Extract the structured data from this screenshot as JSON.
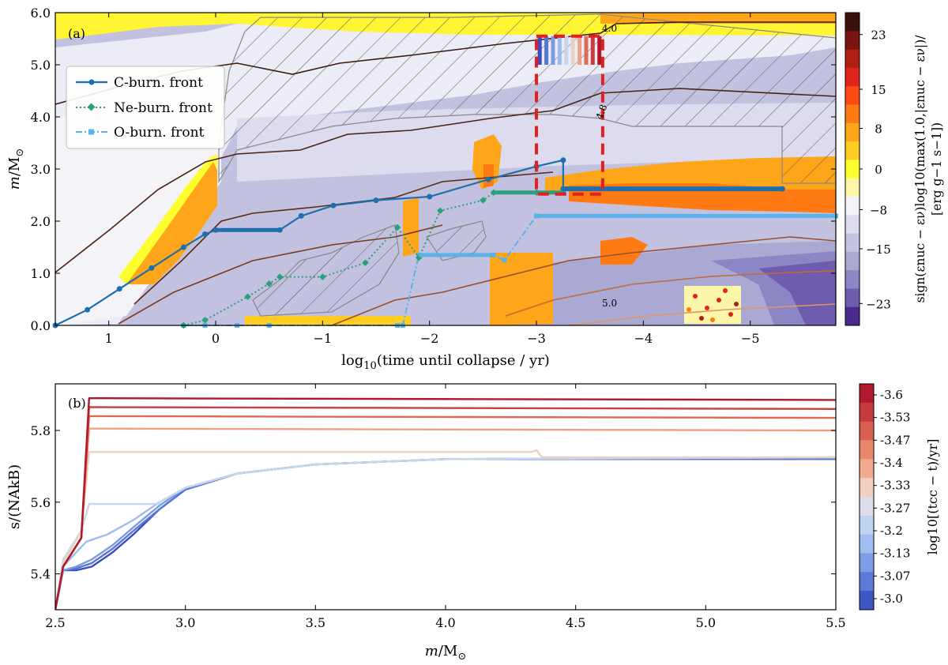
{
  "chart_data": [
    {
      "type": "heatmap",
      "panel_label": "(a)",
      "xlabel_pre": "log",
      "xlabel_sub": "10",
      "xlabel_post": "(time until collapse / yr)",
      "ylabel_main": "m",
      "ylabel_unit": "/M",
      "ylabel_sub": "⊙",
      "xlim": [
        1.5,
        -5.8
      ],
      "ylim": [
        0.0,
        6.0
      ],
      "xticks": [
        1,
        0,
        -1,
        -2,
        -3,
        -4,
        -5
      ],
      "xtick_labels": [
        "1",
        "0",
        "−1",
        "−2",
        "−3",
        "−4",
        "−5"
      ],
      "yticks": [
        0.0,
        1.0,
        2.0,
        3.0,
        4.0,
        5.0,
        6.0
      ],
      "ytick_labels": [
        "0.0",
        "1.0",
        "2.0",
        "3.0",
        "4.0",
        "5.0",
        "6.0"
      ],
      "colorbar": {
        "ticks": [
          "23",
          "15",
          "8",
          "0",
          "−8",
          "−15",
          "−23"
        ],
        "label_line1": "sign(ε",
        "label_line1_text": "sign(εnuc − εν)log10(max(1.0,|εnuc − εν|)/",
        "label_line2_text": "[erg g−1 s−1])",
        "colors": [
          "#3b0f0a",
          "#7a1410",
          "#b01f14",
          "#e0231b",
          "#ff4a14",
          "#ff7a12",
          "#ffa51a",
          "#ffcc22",
          "#ffff30",
          "#fdf6a8",
          "#f4f4f8",
          "#dcdcee",
          "#c4c4e2",
          "#a9a9d4",
          "#8d86c4",
          "#6e5cae",
          "#4b2a8e"
        ]
      },
      "legend": {
        "position": "upper-left",
        "entries": [
          {
            "label": "C-burn. front",
            "color": "#1f6fae",
            "style": "solid",
            "marker": "circle"
          },
          {
            "label": "Ne-burn. front",
            "color": "#2aa07a",
            "style": "dotted",
            "marker": "diamond"
          },
          {
            "label": "O-burn. front",
            "color": "#5bb2e8",
            "style": "dashdot",
            "marker": "square"
          }
        ]
      },
      "contour_labels": [
        "4.0",
        "4.8",
        "4.8",
        "5.0"
      ],
      "c_burn_front": {
        "x": [
          1.5,
          1.2,
          0.9,
          0.6,
          0.3,
          0.1,
          0.0,
          -0.6,
          -0.8,
          -1.1,
          -1.5,
          -2.0,
          -2.55,
          -3.0,
          -3.25,
          -3.25,
          -5.3
        ],
        "y": [
          0.0,
          0.3,
          0.7,
          1.1,
          1.5,
          1.75,
          1.83,
          1.83,
          2.1,
          2.3,
          2.4,
          2.47,
          2.8,
          3.05,
          3.17,
          2.62,
          2.62
        ]
      },
      "ne_burn_front": {
        "x": [
          0.3,
          0.1,
          -0.3,
          -0.5,
          -0.6,
          -1.0,
          -1.4,
          -1.7,
          -1.9,
          -2.1,
          -2.5,
          -2.6,
          -3.0,
          -3.25
        ],
        "y": [
          0.0,
          0.1,
          0.55,
          0.8,
          0.93,
          0.93,
          1.2,
          1.88,
          1.3,
          2.2,
          2.4,
          2.55,
          2.55,
          2.55
        ]
      },
      "o_burn_front": {
        "x": [
          0.1,
          0.3,
          -0.2,
          -0.5,
          -1.7,
          -1.75,
          -1.9,
          -2.6,
          -2.7,
          -3.0,
          -5.8
        ],
        "y": [
          0.0,
          0.0,
          0.0,
          0.0,
          0.0,
          0.0,
          1.35,
          1.35,
          1.25,
          2.1,
          2.1
        ]
      },
      "highlight_box": {
        "x": [
          -3.0,
          -3.62
        ],
        "y": [
          2.52,
          5.55
        ]
      }
    },
    {
      "type": "line",
      "panel_label": "(b)",
      "xlabel_main": "m",
      "xlabel_unit": "/M",
      "xlabel_sub": "⊙",
      "ylabel_main": "s",
      "ylabel_rest": "/(N",
      "ylabel_text": "s/(NAkB)",
      "xlim": [
        2.5,
        5.5
      ],
      "ylim": [
        5.3,
        5.93
      ],
      "xticks": [
        2.5,
        3.0,
        3.5,
        4.0,
        4.5,
        5.0,
        5.5
      ],
      "xtick_labels": [
        "2.5",
        "3.0",
        "3.5",
        "4.0",
        "4.5",
        "5.0",
        "5.5"
      ],
      "yticks": [
        5.4,
        5.6,
        5.8
      ],
      "ytick_labels": [
        "5.4",
        "5.6",
        "5.8"
      ],
      "colorbar": {
        "label": "log10[(tcc − t)/yr]",
        "ticks": [
          "-3.6",
          "-3.53",
          "-3.47",
          "-3.4",
          "-3.33",
          "-3.27",
          "-3.2",
          "-3.13",
          "-3.07",
          "-3.0"
        ],
        "colors": [
          "#b2182b",
          "#c73a3a",
          "#d86050",
          "#e8896e",
          "#f0aa90",
          "#f2cfc0",
          "#dcdde8",
          "#bfd3f2",
          "#a0bef0",
          "#7d9de6",
          "#5b7bd6",
          "#3d57c4"
        ]
      },
      "series": [
        {
          "t": -3.6,
          "color": "#b2182b",
          "x": [
            2.5,
            2.53,
            2.6,
            2.63,
            5.5
          ],
          "y": [
            5.3,
            5.42,
            5.5,
            5.89,
            5.885
          ]
        },
        {
          "t": -3.53,
          "color": "#cc3d3d",
          "x": [
            2.5,
            2.53,
            2.6,
            2.63,
            5.5
          ],
          "y": [
            5.3,
            5.42,
            5.5,
            5.865,
            5.86
          ]
        },
        {
          "t": -3.47,
          "color": "#dd6a55",
          "x": [
            2.5,
            2.53,
            2.6,
            2.63,
            5.5
          ],
          "y": [
            5.3,
            5.42,
            5.5,
            5.84,
            5.835
          ]
        },
        {
          "t": -3.4,
          "color": "#eea083",
          "x": [
            2.5,
            2.53,
            2.6,
            2.63,
            5.5
          ],
          "y": [
            5.3,
            5.42,
            5.5,
            5.805,
            5.8
          ]
        },
        {
          "t": -3.33,
          "color": "#e9cfc4",
          "x": [
            2.5,
            2.53,
            2.6,
            2.63,
            4.33,
            4.35,
            4.37,
            5.5
          ],
          "y": [
            5.3,
            5.43,
            5.52,
            5.74,
            5.74,
            5.745,
            5.725,
            5.725
          ]
        },
        {
          "t": -3.27,
          "color": "#c8d6ea",
          "x": [
            2.5,
            2.53,
            2.6,
            2.63,
            2.9,
            2.9,
            3.0,
            3.2,
            3.5,
            4.0,
            5.5
          ],
          "y": [
            5.3,
            5.44,
            5.52,
            5.595,
            5.595,
            5.6,
            5.64,
            5.68,
            5.705,
            5.72,
            5.725
          ]
        },
        {
          "t": -3.2,
          "color": "#9dbcec",
          "x": [
            2.5,
            2.53,
            2.58,
            2.62,
            2.7,
            2.8,
            2.9,
            3.0,
            3.2,
            3.5,
            4.0,
            5.5
          ],
          "y": [
            5.3,
            5.42,
            5.46,
            5.49,
            5.51,
            5.55,
            5.6,
            5.64,
            5.68,
            5.705,
            5.72,
            5.725
          ]
        },
        {
          "t": -3.13,
          "color": "#7b9be0",
          "x": [
            2.5,
            2.53,
            2.58,
            2.64,
            2.72,
            2.8,
            2.9,
            3.0,
            3.2,
            3.5,
            4.0,
            5.5
          ],
          "y": [
            5.3,
            5.41,
            5.42,
            5.44,
            5.48,
            5.53,
            5.59,
            5.64,
            5.68,
            5.705,
            5.72,
            5.725
          ]
        },
        {
          "t": -3.07,
          "color": "#5777d4",
          "x": [
            2.5,
            2.53,
            2.58,
            2.64,
            2.72,
            2.8,
            2.9,
            3.0,
            3.2,
            3.5,
            4.0,
            5.5
          ],
          "y": [
            5.3,
            5.41,
            5.415,
            5.43,
            5.47,
            5.52,
            5.58,
            5.635,
            5.68,
            5.705,
            5.72,
            5.72
          ]
        },
        {
          "t": -3.0,
          "color": "#3b4cc0",
          "x": [
            2.5,
            2.53,
            2.58,
            2.64,
            2.72,
            2.8,
            2.9,
            3.0,
            3.2,
            3.5,
            4.0,
            5.5
          ],
          "y": [
            5.3,
            5.41,
            5.41,
            5.42,
            5.46,
            5.51,
            5.58,
            5.635,
            5.68,
            5.705,
            5.72,
            5.72
          ]
        }
      ]
    }
  ]
}
